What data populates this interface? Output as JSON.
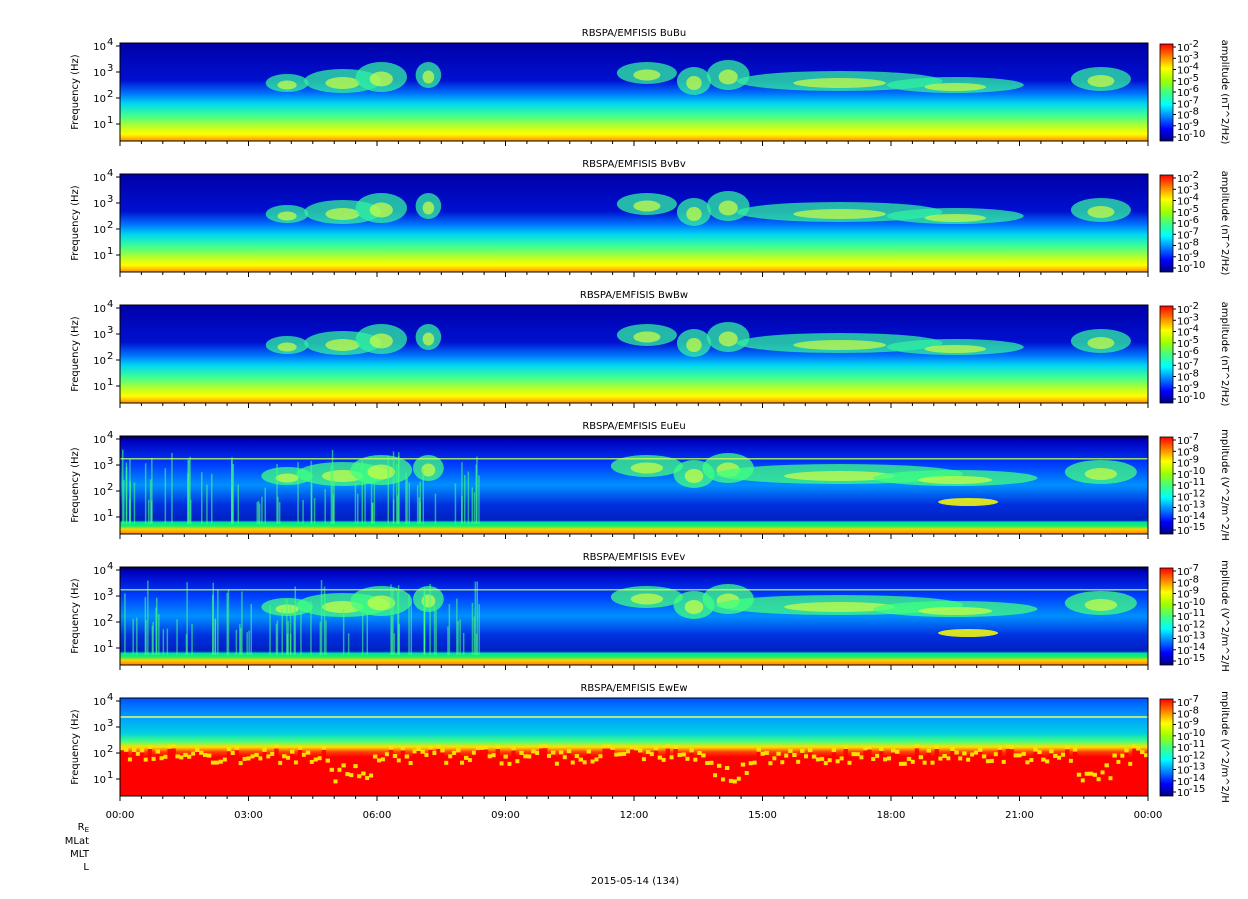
{
  "chart_data": {
    "type": "heatmap",
    "date_label": "2015-05-14 (134)",
    "x_ticks": [
      "00:00",
      "03:00",
      "06:00",
      "09:00",
      "12:00",
      "15:00",
      "18:00",
      "21:00",
      "00:00"
    ],
    "x_range_hours": [
      0,
      24
    ],
    "ephemeris_labels": [
      "R_E",
      "MLat",
      "MLT",
      "L"
    ],
    "colormap": [
      "#000080",
      "#0000ff",
      "#0080ff",
      "#00ffff",
      "#40ff80",
      "#a0ff00",
      "#ffff00",
      "#ff8000",
      "#ff0000"
    ],
    "panels": [
      {
        "title": "RBSPA/EMFISIS  BuBu",
        "ylabel": "Frequency (Hz)",
        "y_ticks": [
          "10",
          "10",
          "10",
          "10"
        ],
        "y_exps": [
          "1",
          "2",
          "3",
          "4"
        ],
        "cbar_label": "amplitude (nT^2/Hz)",
        "cbar_ticks": [
          "-2",
          "-3",
          "-4",
          "-5",
          "-6",
          "-7",
          "-8",
          "-9",
          "-10"
        ],
        "kind": "B"
      },
      {
        "title": "RBSPA/EMFISIS  BvBv",
        "ylabel": "Frequency (Hz)",
        "y_ticks": [
          "10",
          "10",
          "10",
          "10"
        ],
        "y_exps": [
          "1",
          "2",
          "3",
          "4"
        ],
        "cbar_label": "amplitude (nT^2/Hz)",
        "cbar_ticks": [
          "-2",
          "-3",
          "-4",
          "-5",
          "-6",
          "-7",
          "-8",
          "-9",
          "-10"
        ],
        "kind": "B"
      },
      {
        "title": "RBSPA/EMFISIS  BwBw",
        "ylabel": "Frequency (Hz)",
        "y_ticks": [
          "10",
          "10",
          "10",
          "10"
        ],
        "y_exps": [
          "1",
          "2",
          "3",
          "4"
        ],
        "cbar_label": "amplitude (nT^2/Hz)",
        "cbar_ticks": [
          "-2",
          "-3",
          "-4",
          "-5",
          "-6",
          "-7",
          "-8",
          "-9",
          "-10"
        ],
        "kind": "B"
      },
      {
        "title": "RBSPA/EMFISIS  EuEu",
        "ylabel": "Frequency (Hz)",
        "y_ticks": [
          "10",
          "10",
          "10",
          "10"
        ],
        "y_exps": [
          "1",
          "2",
          "3",
          "4"
        ],
        "cbar_label": "mplitude (V^2/m^2/H",
        "cbar_ticks": [
          "-7",
          "-8",
          "-9",
          "-10",
          "-11",
          "-12",
          "-13",
          "-14",
          "-15"
        ],
        "kind": "E"
      },
      {
        "title": "RBSPA/EMFISIS  EvEv",
        "ylabel": "Frequency (Hz)",
        "y_ticks": [
          "10",
          "10",
          "10",
          "10"
        ],
        "y_exps": [
          "1",
          "2",
          "3",
          "4"
        ],
        "cbar_label": "mplitude (V^2/m^2/H",
        "cbar_ticks": [
          "-7",
          "-8",
          "-9",
          "-10",
          "-11",
          "-12",
          "-13",
          "-14",
          "-15"
        ],
        "kind": "E"
      },
      {
        "title": "RBSPA/EMFISIS  EwEw",
        "ylabel": "Frequency (Hz)",
        "y_ticks": [
          "10",
          "10",
          "10",
          "10"
        ],
        "y_exps": [
          "1",
          "2",
          "3",
          "4"
        ],
        "cbar_label": "mplitude (V^2/m^2/H",
        "cbar_ticks": [
          "-7",
          "-8",
          "-9",
          "-10",
          "-11",
          "-12",
          "-13",
          "-14",
          "-15"
        ],
        "kind": "Ew"
      }
    ]
  }
}
